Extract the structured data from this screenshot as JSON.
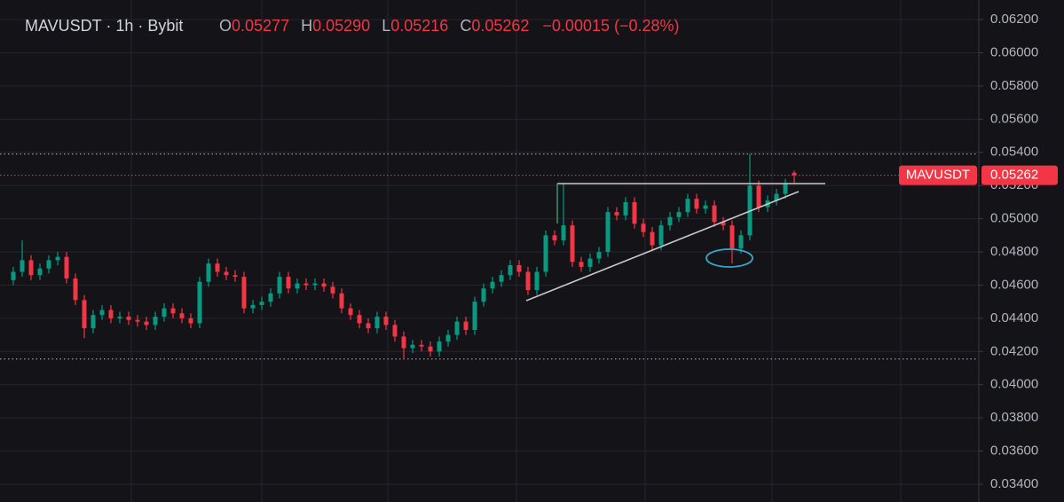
{
  "chart_data": {
    "type": "candlestick",
    "symbol_line": "MAVUSDT · 1h · Bybit",
    "ohlc_legend": [
      {
        "letter": "O",
        "value": "0.05277"
      },
      {
        "letter": "H",
        "value": "0.05290"
      },
      {
        "letter": "L",
        "value": "0.05216"
      },
      {
        "letter": "C",
        "value": "0.05262"
      }
    ],
    "change": "−0.00015 (−0.28%)",
    "up_color": "#089981",
    "down_color": "#f23645",
    "open": [
      0.0463,
      0.0468,
      0.0475,
      0.0466,
      0.047,
      0.0475,
      0.0477,
      0.0464,
      0.0451,
      0.0434,
      0.0442,
      0.0445,
      0.044,
      0.0441,
      0.0439,
      0.0438,
      0.0436,
      0.0441,
      0.0446,
      0.0443,
      0.044,
      0.0437,
      0.0462,
      0.0473,
      0.0468,
      0.0466,
      0.0465,
      0.0446,
      0.0448,
      0.045,
      0.0455,
      0.0465,
      0.0458,
      0.0461,
      0.046,
      0.0461,
      0.0459,
      0.0455,
      0.0446,
      0.0442,
      0.0437,
      0.0434,
      0.0441,
      0.0436,
      0.0429,
      0.0422,
      0.0424,
      0.0423,
      0.042,
      0.0426,
      0.043,
      0.0438,
      0.0433,
      0.045,
      0.0458,
      0.0462,
      0.0466,
      0.0472,
      0.0468,
      0.0457,
      0.0468,
      0.049,
      0.0487,
      0.0496,
      0.0474,
      0.0471,
      0.0476,
      0.048,
      0.0504,
      0.0502,
      0.051,
      0.0497,
      0.0492,
      0.0484,
      0.0496,
      0.0501,
      0.0504,
      0.0512,
      0.0506,
      0.0508,
      0.0498,
      0.0496,
      0.0482,
      0.049,
      0.052,
      0.0507,
      0.0511,
      0.0515,
      0.05277
    ],
    "high": [
      0.0471,
      0.0487,
      0.0478,
      0.0473,
      0.0478,
      0.048,
      0.048,
      0.0467,
      0.0454,
      0.0445,
      0.0448,
      0.0448,
      0.0444,
      0.0444,
      0.0442,
      0.0441,
      0.0444,
      0.0449,
      0.0449,
      0.0446,
      0.0443,
      0.0465,
      0.0476,
      0.0476,
      0.0471,
      0.0469,
      0.0468,
      0.0451,
      0.0453,
      0.0458,
      0.0468,
      0.0468,
      0.0464,
      0.0464,
      0.0464,
      0.0464,
      0.0462,
      0.0458,
      0.0449,
      0.0445,
      0.044,
      0.0444,
      0.0444,
      0.0439,
      0.0432,
      0.0427,
      0.0427,
      0.0426,
      0.0429,
      0.0433,
      0.0441,
      0.0441,
      0.0453,
      0.0461,
      0.0465,
      0.0469,
      0.0475,
      0.0475,
      0.0471,
      0.0471,
      0.0493,
      0.0493,
      0.0521,
      0.0499,
      0.0477,
      0.0479,
      0.0483,
      0.0507,
      0.0507,
      0.0513,
      0.0513,
      0.05,
      0.0495,
      0.0499,
      0.0504,
      0.0507,
      0.0515,
      0.0515,
      0.0511,
      0.0511,
      0.0501,
      0.0499,
      0.0493,
      0.0539,
      0.0523,
      0.0514,
      0.0518,
      0.0524,
      0.0529
    ],
    "low": [
      0.046,
      0.0465,
      0.0463,
      0.0463,
      0.0467,
      0.0472,
      0.0461,
      0.0448,
      0.0428,
      0.0431,
      0.0439,
      0.0437,
      0.0437,
      0.0436,
      0.0435,
      0.0433,
      0.0433,
      0.0438,
      0.044,
      0.0437,
      0.0434,
      0.0434,
      0.0459,
      0.0465,
      0.0463,
      0.0462,
      0.0443,
      0.0443,
      0.0445,
      0.0447,
      0.0452,
      0.0455,
      0.0455,
      0.0457,
      0.0457,
      0.0456,
      0.0452,
      0.0443,
      0.0439,
      0.0434,
      0.0431,
      0.0431,
      0.0433,
      0.0426,
      0.0416,
      0.0419,
      0.042,
      0.0417,
      0.0417,
      0.0423,
      0.0427,
      0.043,
      0.043,
      0.0447,
      0.0455,
      0.0459,
      0.0463,
      0.0465,
      0.0454,
      0.0454,
      0.0465,
      0.0484,
      0.0484,
      0.0471,
      0.0468,
      0.0468,
      0.0473,
      0.0477,
      0.0499,
      0.0499,
      0.0494,
      0.0489,
      0.0481,
      0.0481,
      0.0493,
      0.0498,
      0.0501,
      0.0503,
      0.0503,
      0.0495,
      0.0493,
      0.0473,
      0.0479,
      0.0487,
      0.0504,
      0.0504,
      0.0508,
      0.0512,
      0.05216
    ],
    "close": [
      0.0468,
      0.0475,
      0.0466,
      0.047,
      0.0475,
      0.0477,
      0.0464,
      0.0451,
      0.0434,
      0.0442,
      0.0445,
      0.044,
      0.0441,
      0.0439,
      0.0438,
      0.0436,
      0.0441,
      0.0446,
      0.0443,
      0.044,
      0.0437,
      0.0462,
      0.0473,
      0.0468,
      0.0466,
      0.0465,
      0.0446,
      0.0448,
      0.045,
      0.0455,
      0.0465,
      0.0458,
      0.0461,
      0.046,
      0.0461,
      0.0459,
      0.0455,
      0.0446,
      0.0442,
      0.0437,
      0.0434,
      0.0441,
      0.0436,
      0.0429,
      0.0422,
      0.0424,
      0.0423,
      0.042,
      0.0426,
      0.043,
      0.0438,
      0.0433,
      0.045,
      0.0458,
      0.0462,
      0.0466,
      0.0472,
      0.0468,
      0.0457,
      0.0468,
      0.049,
      0.0487,
      0.0496,
      0.0474,
      0.0471,
      0.0476,
      0.048,
      0.0504,
      0.0502,
      0.051,
      0.0497,
      0.0492,
      0.0484,
      0.0496,
      0.0501,
      0.0504,
      0.0512,
      0.0506,
      0.0508,
      0.0498,
      0.0496,
      0.0482,
      0.049,
      0.052,
      0.0507,
      0.0511,
      0.0515,
      0.0521,
      0.05262
    ],
    "ylim": [
      0.03293,
      0.06318
    ],
    "yticks": [
      {
        "value": 0.034,
        "label": "0.03400"
      },
      {
        "value": 0.036,
        "label": "0.03600"
      },
      {
        "value": 0.038,
        "label": "0.03800"
      },
      {
        "value": 0.04,
        "label": "0.04000"
      },
      {
        "value": 0.042,
        "label": "0.04200"
      },
      {
        "value": 0.044,
        "label": "0.04400"
      },
      {
        "value": 0.046,
        "label": "0.04600"
      },
      {
        "value": 0.048,
        "label": "0.04800"
      },
      {
        "value": 0.05,
        "label": "0.05000"
      },
      {
        "value": 0.052,
        "label": "0.05200"
      },
      {
        "value": 0.054,
        "label": "0.05400"
      },
      {
        "value": 0.056,
        "label": "0.05600"
      },
      {
        "value": 0.058,
        "label": "0.05800"
      },
      {
        "value": 0.06,
        "label": "0.06000"
      },
      {
        "value": 0.062,
        "label": "0.06200"
      }
    ],
    "grid": true,
    "range_lines": [
      0.0539,
      0.04155
    ],
    "price_line": {
      "value": 0.05262,
      "label": "0.05262",
      "symbol": "MAVUSDT"
    }
  }
}
